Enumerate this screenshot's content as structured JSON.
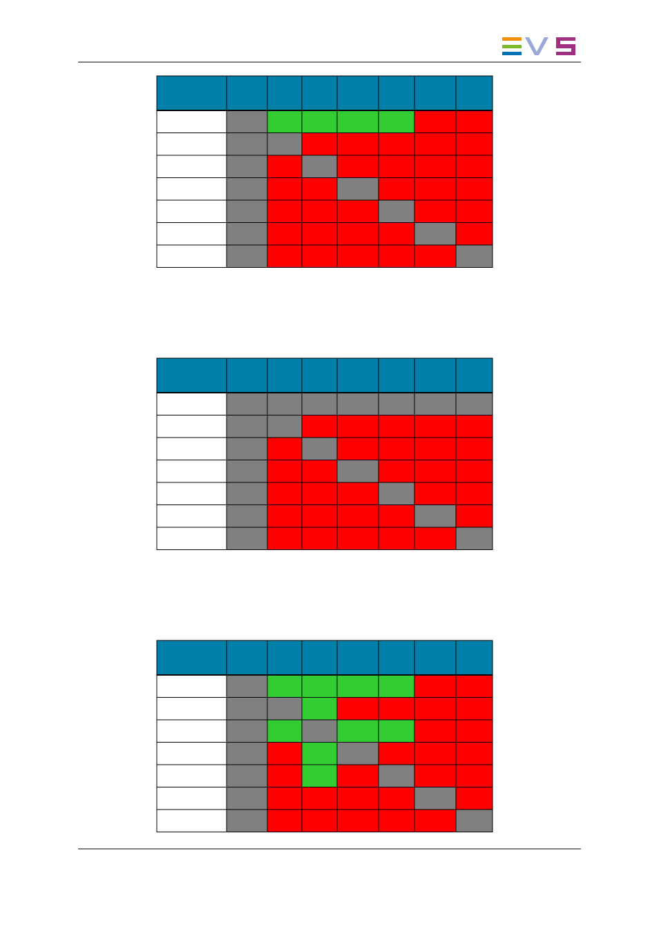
{
  "header_color": "#0080a8",
  "tables": [
    {
      "rows": [
        [
          "#ffffff",
          "#808080",
          "#33cc33",
          "#33cc33",
          "#33cc33",
          "#33cc33",
          "#ff0000",
          "#ff0000"
        ],
        [
          "#ffffff",
          "#808080",
          "#808080",
          "#ff0000",
          "#ff0000",
          "#ff0000",
          "#ff0000",
          "#ff0000"
        ],
        [
          "#ffffff",
          "#808080",
          "#ff0000",
          "#808080",
          "#ff0000",
          "#ff0000",
          "#ff0000",
          "#ff0000"
        ],
        [
          "#ffffff",
          "#808080",
          "#ff0000",
          "#ff0000",
          "#808080",
          "#ff0000",
          "#ff0000",
          "#ff0000"
        ],
        [
          "#ffffff",
          "#808080",
          "#ff0000",
          "#ff0000",
          "#ff0000",
          "#808080",
          "#ff0000",
          "#ff0000"
        ],
        [
          "#ffffff",
          "#808080",
          "#ff0000",
          "#ff0000",
          "#ff0000",
          "#ff0000",
          "#808080",
          "#ff0000"
        ],
        [
          "#ffffff",
          "#808080",
          "#ff0000",
          "#ff0000",
          "#ff0000",
          "#ff0000",
          "#ff0000",
          "#808080"
        ]
      ]
    },
    {
      "rows": [
        [
          "#ffffff",
          "#808080",
          "#808080",
          "#808080",
          "#808080",
          "#808080",
          "#808080",
          "#808080"
        ],
        [
          "#ffffff",
          "#808080",
          "#808080",
          "#ff0000",
          "#ff0000",
          "#ff0000",
          "#ff0000",
          "#ff0000"
        ],
        [
          "#ffffff",
          "#808080",
          "#ff0000",
          "#808080",
          "#ff0000",
          "#ff0000",
          "#ff0000",
          "#ff0000"
        ],
        [
          "#ffffff",
          "#808080",
          "#ff0000",
          "#ff0000",
          "#808080",
          "#ff0000",
          "#ff0000",
          "#ff0000"
        ],
        [
          "#ffffff",
          "#808080",
          "#ff0000",
          "#ff0000",
          "#ff0000",
          "#808080",
          "#ff0000",
          "#ff0000"
        ],
        [
          "#ffffff",
          "#808080",
          "#ff0000",
          "#ff0000",
          "#ff0000",
          "#ff0000",
          "#808080",
          "#ff0000"
        ],
        [
          "#ffffff",
          "#808080",
          "#ff0000",
          "#ff0000",
          "#ff0000",
          "#ff0000",
          "#ff0000",
          "#808080"
        ]
      ]
    },
    {
      "rows": [
        [
          "#ffffff",
          "#808080",
          "#33cc33",
          "#33cc33",
          "#33cc33",
          "#33cc33",
          "#ff0000",
          "#ff0000"
        ],
        [
          "#ffffff",
          "#808080",
          "#808080",
          "#33cc33",
          "#ff0000",
          "#ff0000",
          "#ff0000",
          "#ff0000"
        ],
        [
          "#ffffff",
          "#808080",
          "#33cc33",
          "#808080",
          "#33cc33",
          "#33cc33",
          "#ff0000",
          "#ff0000"
        ],
        [
          "#ffffff",
          "#808080",
          "#ff0000",
          "#33cc33",
          "#808080",
          "#ff0000",
          "#ff0000",
          "#ff0000"
        ],
        [
          "#ffffff",
          "#808080",
          "#ff0000",
          "#33cc33",
          "#ff0000",
          "#808080",
          "#ff0000",
          "#ff0000"
        ],
        [
          "#ffffff",
          "#808080",
          "#ff0000",
          "#ff0000",
          "#ff0000",
          "#ff0000",
          "#808080",
          "#ff0000"
        ],
        [
          "#ffffff",
          "#808080",
          "#ff0000",
          "#ff0000",
          "#ff0000",
          "#ff0000",
          "#ff0000",
          "#808080"
        ]
      ]
    }
  ]
}
